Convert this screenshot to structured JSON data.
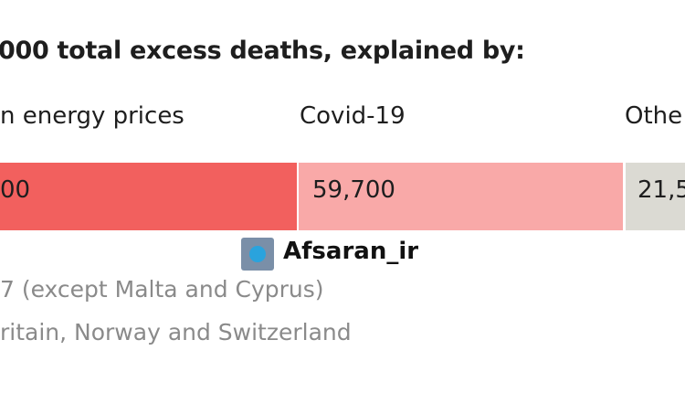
{
  "title": "000 total excess deaths, explained by:",
  "segments": [
    {
      "label": "n energy prices",
      "value": "00"
    },
    {
      "label": "Covid-19",
      "value": "59,700"
    },
    {
      "label": "Othe",
      "value": "21,5"
    }
  ],
  "watermark": "Afsaran_ir",
  "notes": [
    "7 (except Malta and Cyprus)",
    "ritain, Norway and Switzerland"
  ]
}
